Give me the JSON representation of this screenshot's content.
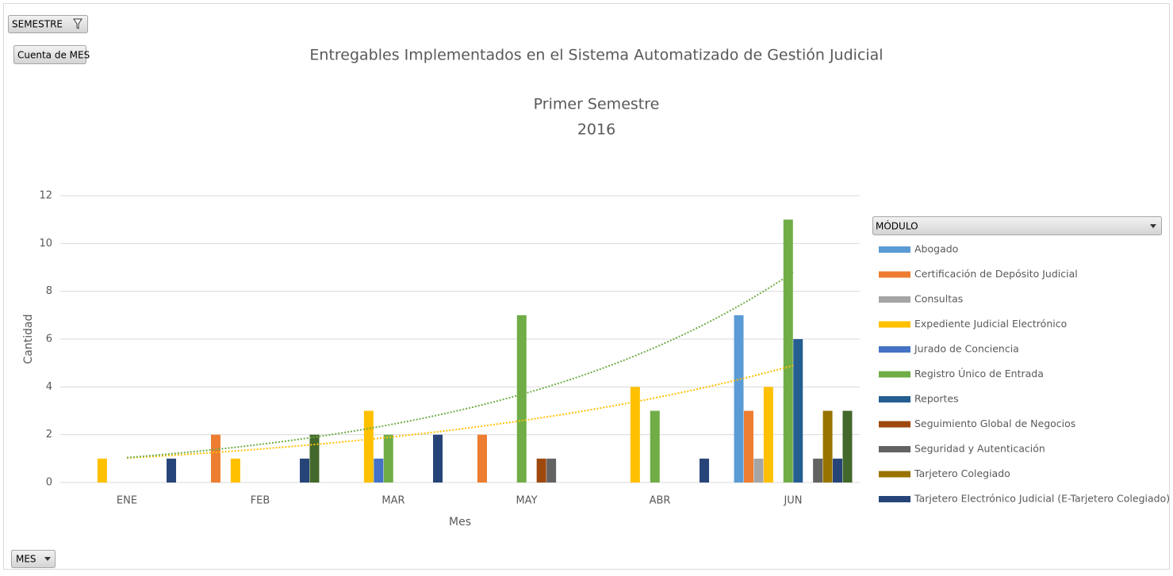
{
  "chart_data": {
    "type": "bar",
    "title": "Entregables Implementados en el Sistema Automatizado de Gestión Judicial",
    "subtitle": [
      "Primer Semestre",
      "2016"
    ],
    "report_filter": "SEMESTRE",
    "value_field": "Cuenta de MES",
    "axis_field": "MES",
    "legend_field": "MÓDULO",
    "x_label": "Mes",
    "y_label": "Cantidad",
    "categories": [
      "ENE",
      "FEB",
      "MAR",
      "MAY",
      "ABR",
      "JUN"
    ],
    "ylim": [
      0,
      12
    ],
    "yticks": [
      0,
      2,
      4,
      6,
      8,
      10,
      12
    ],
    "grid": true,
    "legend": "right",
    "series": [
      {
        "name": "Abogado",
        "color": "#5b9bd5",
        "values": [
          null,
          null,
          null,
          null,
          null,
          7
        ]
      },
      {
        "name": "Certificación de Depósito Judicial",
        "color": "#ed7d31",
        "values": [
          null,
          2,
          null,
          2,
          null,
          3
        ]
      },
      {
        "name": "Consultas",
        "color": "#a5a5a5",
        "values": [
          null,
          null,
          null,
          null,
          null,
          1
        ]
      },
      {
        "name": "Expediente Judicial Electrónico",
        "color": "#ffc000",
        "values": [
          1,
          1,
          3,
          null,
          4,
          4
        ],
        "trendline": "exponential"
      },
      {
        "name": "Jurado de Conciencia",
        "color": "#4472c4",
        "values": [
          null,
          null,
          1,
          null,
          null,
          null
        ]
      },
      {
        "name": "Registro Único de Entrada",
        "color": "#70ad47",
        "values": [
          null,
          null,
          2,
          7,
          3,
          11
        ],
        "trendline": "exponential"
      },
      {
        "name": "Reportes",
        "color": "#255e91",
        "values": [
          null,
          null,
          null,
          null,
          null,
          6
        ]
      },
      {
        "name": "Seguimiento Global de Negocios",
        "color": "#9e480e",
        "values": [
          null,
          null,
          null,
          1,
          null,
          null
        ]
      },
      {
        "name": "Seguridad y Autenticación",
        "color": "#636363",
        "values": [
          null,
          null,
          null,
          1,
          null,
          1
        ]
      },
      {
        "name": "Tarjetero Colegiado",
        "color": "#997300",
        "values": [
          null,
          null,
          null,
          null,
          null,
          3
        ]
      },
      {
        "name": "Tarjetero Electrónico Judicial (E-Tarjetero Colegiado)",
        "color": "#264478",
        "values": [
          1,
          1,
          2,
          null,
          1,
          1
        ]
      },
      {
        "name": null,
        "color": "#43682b",
        "values": [
          null,
          2,
          null,
          null,
          null,
          3
        ]
      }
    ]
  }
}
